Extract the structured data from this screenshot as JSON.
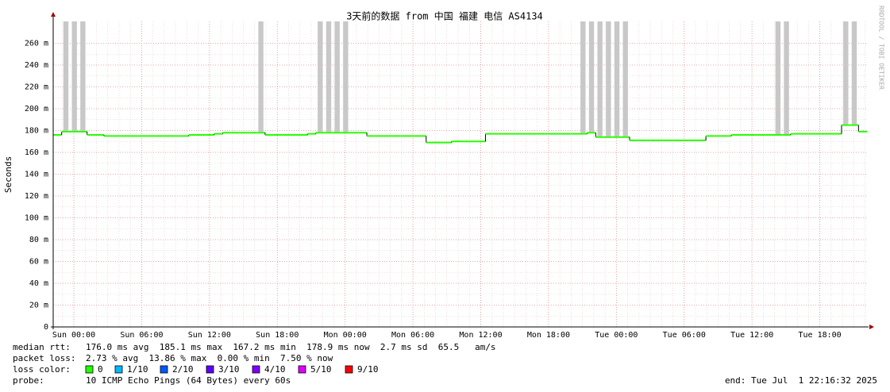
{
  "chart_data": {
    "type": "smokeping",
    "title": "3天前的数据 from 中国 福建 电信 AS4134",
    "y_label": "Seconds",
    "watermark": "RRDTOOL / TOBI OETIKER",
    "ylim": [
      0,
      0.28
    ],
    "yticks": [
      0,
      {
        "value": 0.02,
        "label": "20 m"
      },
      {
        "value": 0.04,
        "label": "40 m"
      },
      {
        "value": 0.06,
        "label": "60 m"
      },
      {
        "value": 0.08,
        "label": "80 m"
      },
      {
        "value": 0.1,
        "label": "100 m"
      },
      {
        "value": 0.12,
        "label": "120 m"
      },
      {
        "value": 0.14,
        "label": "140 m"
      },
      {
        "value": 0.16,
        "label": "160 m"
      },
      {
        "value": 0.18,
        "label": "180 m"
      },
      {
        "value": 0.2,
        "label": "200 m"
      },
      {
        "value": 0.22,
        "label": "220 m"
      },
      {
        "value": 0.24,
        "label": "240 m"
      },
      {
        "value": 0.26,
        "label": "260 m"
      }
    ],
    "xticks": [
      "Sun 00:00",
      "Sun 06:00",
      "Sun 12:00",
      "Sun 18:00",
      "Mon 00:00",
      "Mon 06:00",
      "Mon 12:00",
      "Mon 18:00",
      "Tue 00:00",
      "Tue 06:00",
      "Tue 12:00",
      "Tue 18:00"
    ],
    "grid": true,
    "series": [
      {
        "name": "median rtt",
        "color": "#26ff00",
        "values": [
          0.176,
          0.179,
          0.179,
          0.179,
          0.176,
          0.176,
          0.175,
          0.175,
          0.175,
          0.175,
          0.175,
          0.175,
          0.175,
          0.175,
          0.175,
          0.175,
          0.176,
          0.176,
          0.176,
          0.177,
          0.178,
          0.178,
          0.178,
          0.178,
          0.178,
          0.176,
          0.176,
          0.176,
          0.176,
          0.176,
          0.177,
          0.178,
          0.178,
          0.178,
          0.178,
          0.178,
          0.178,
          0.175,
          0.175,
          0.175,
          0.175,
          0.175,
          0.175,
          0.175,
          0.169,
          0.169,
          0.169,
          0.17,
          0.17,
          0.17,
          0.17,
          0.177,
          0.177,
          0.177,
          0.177,
          0.177,
          0.177,
          0.177,
          0.177,
          0.177,
          0.177,
          0.177,
          0.177,
          0.178,
          0.174,
          0.174,
          0.174,
          0.174,
          0.171,
          0.171,
          0.171,
          0.171,
          0.171,
          0.171,
          0.171,
          0.171,
          0.171,
          0.175,
          0.175,
          0.175,
          0.176,
          0.176,
          0.176,
          0.176,
          0.176,
          0.176,
          0.176,
          0.177,
          0.177,
          0.177,
          0.177,
          0.177,
          0.177,
          0.185,
          0.185,
          0.179
        ]
      },
      {
        "name": "smoke",
        "color": "#c8c8c8",
        "values": [
          null,
          0.28,
          0.28,
          0.28,
          null,
          null,
          null,
          null,
          null,
          null,
          null,
          null,
          null,
          null,
          null,
          null,
          null,
          null,
          null,
          null,
          null,
          null,
          null,
          null,
          0.28,
          null,
          null,
          null,
          null,
          null,
          null,
          0.28,
          0.28,
          0.28,
          0.28,
          null,
          null,
          null,
          null,
          null,
          null,
          null,
          null,
          null,
          null,
          null,
          null,
          null,
          null,
          null,
          null,
          null,
          null,
          null,
          null,
          null,
          null,
          null,
          null,
          null,
          null,
          null,
          0.28,
          0.28,
          0.28,
          0.28,
          0.28,
          0.28,
          null,
          null,
          null,
          null,
          null,
          null,
          null,
          null,
          null,
          null,
          null,
          null,
          null,
          null,
          null,
          null,
          null,
          0.28,
          0.28,
          null,
          null,
          null,
          null,
          null,
          null,
          0.28,
          0.28,
          null
        ]
      }
    ],
    "stats": [
      {
        "label": "median rtt:",
        "text": "176.0 ms avg  185.1 ms max  167.2 ms min  178.9 ms now  2.7 ms sd  65.5   am/s"
      },
      {
        "label": "packet loss:",
        "text": "2.73 % avg  13.86 % max  0.00 % min  7.50 % now"
      }
    ],
    "loss_legend_label": "loss color:",
    "loss_legend": [
      {
        "label": "0",
        "color": "#26ff00"
      },
      {
        "label": "1/10",
        "color": "#00b8ff"
      },
      {
        "label": "2/10",
        "color": "#0059ff"
      },
      {
        "label": "3/10",
        "color": "#5e00ff"
      },
      {
        "label": "4/10",
        "color": "#7e00ff"
      },
      {
        "label": "5/10",
        "color": "#dd00ff"
      },
      {
        "label": "9/10",
        "color": "#ff0000"
      }
    ],
    "probe_label": "probe:",
    "probe": "10 ICMP Echo Pings (64 Bytes) every 60s",
    "end": "end: Tue Jul  1 22:16:32 2025"
  }
}
